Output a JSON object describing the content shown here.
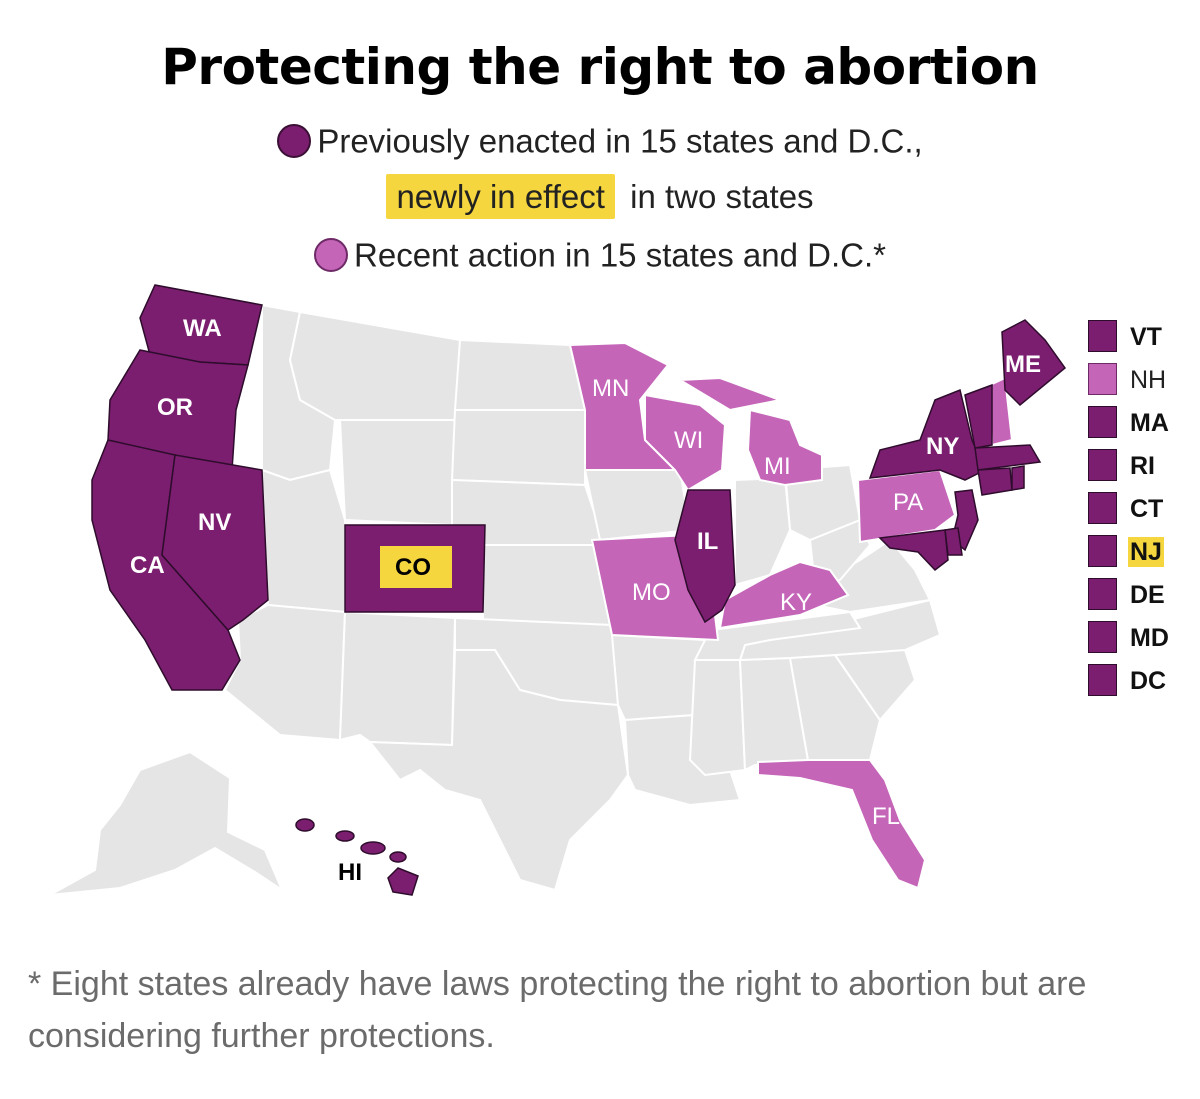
{
  "title": "Protecting the right to abortion",
  "legend": {
    "enacted": {
      "color": "#7b1e6f",
      "text": "Previously enacted in 15 states and D.C.,"
    },
    "newly": {
      "highlight": "newly in effect",
      "rest": "in two states",
      "highlight_color": "#f5d63f"
    },
    "recent": {
      "color": "#c465b8",
      "text": "Recent action in 15 states and D.C.*"
    }
  },
  "colors": {
    "enacted": "#7b1e6f",
    "recent": "#c465b8",
    "none": "#e5e5e5",
    "border": "#ffffff",
    "newly_bg": "#f5d63f"
  },
  "states": {
    "WA": {
      "label": "WA",
      "status": "enacted"
    },
    "OR": {
      "label": "OR",
      "status": "enacted"
    },
    "CA": {
      "label": "CA",
      "status": "enacted"
    },
    "NV": {
      "label": "NV",
      "status": "enacted"
    },
    "CO": {
      "label": "CO",
      "status": "enacted",
      "newly": true
    },
    "IL": {
      "label": "IL",
      "status": "enacted"
    },
    "NY": {
      "label": "NY",
      "status": "enacted"
    },
    "ME": {
      "label": "ME",
      "status": "enacted"
    },
    "HI": {
      "label": "HI",
      "status": "enacted"
    },
    "MN": {
      "label": "MN",
      "status": "recent"
    },
    "WI": {
      "label": "WI",
      "status": "recent"
    },
    "MI": {
      "label": "MI",
      "status": "recent"
    },
    "PA": {
      "label": "PA",
      "status": "recent"
    },
    "MO": {
      "label": "MO",
      "status": "recent"
    },
    "KY": {
      "label": "KY",
      "status": "recent"
    },
    "FL": {
      "label": "FL",
      "status": "recent"
    }
  },
  "northeast_list": [
    {
      "label": "VT",
      "status": "enacted"
    },
    {
      "label": "NH",
      "status": "recent"
    },
    {
      "label": "MA",
      "status": "enacted"
    },
    {
      "label": "RI",
      "status": "enacted"
    },
    {
      "label": "CT",
      "status": "enacted"
    },
    {
      "label": "NJ",
      "status": "enacted",
      "newly": true
    },
    {
      "label": "DE",
      "status": "enacted"
    },
    {
      "label": "MD",
      "status": "enacted"
    },
    {
      "label": "DC",
      "status": "enacted"
    }
  ],
  "footnote": "* Eight states already have laws protecting the right to abortion but are considering further protections."
}
